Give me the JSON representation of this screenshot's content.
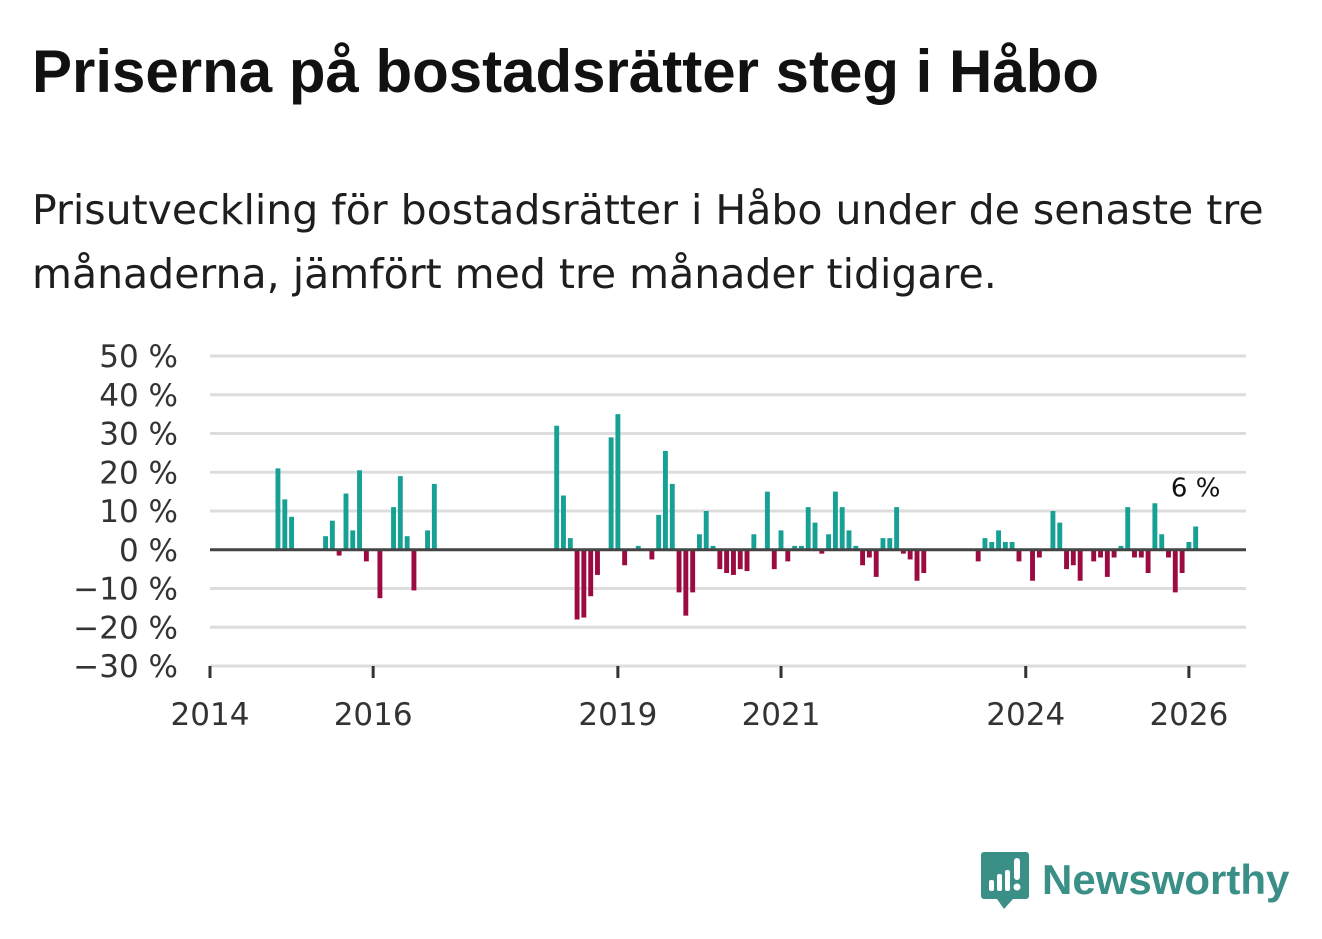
{
  "title": "Priserna på bostadsrätter steg i Håbo",
  "subtitle": "Prisutveckling för bostadsrätter i Håbo under de senaste tre månaderna, jämfört med tre månader tidigare.",
  "brand": {
    "name": "Newsworthy",
    "color": "#3a8f87"
  },
  "colors": {
    "positive": "#17a094",
    "negative": "#9b0a40",
    "grid": "#dddddd",
    "axis": "#444444"
  },
  "chart_data": {
    "type": "bar",
    "title": "Prisutveckling för bostadsrätter i Håbo",
    "xlabel": "",
    "ylabel": "",
    "ylim": [
      -30,
      50
    ],
    "xlim": [
      2014.0,
      2026.7
    ],
    "y_ticks": [
      50,
      40,
      30,
      20,
      10,
      0,
      -10,
      -20,
      -30
    ],
    "y_tick_labels": [
      "50 %",
      "40 %",
      "30 %",
      "20 %",
      "10 %",
      "0 %",
      "−10 %",
      "−20 %",
      "−30 %"
    ],
    "x_ticks": [
      2014,
      2016,
      2019,
      2021,
      2024,
      2026
    ],
    "x_tick_labels": [
      "2014",
      "2016",
      "2019",
      "2021",
      "2024",
      "2026"
    ],
    "annotation": {
      "x": 2026.083,
      "label": "6 %"
    },
    "x": [
      2014.833,
      2014.917,
      2015.0,
      2015.417,
      2015.5,
      2015.583,
      2015.667,
      2015.75,
      2015.833,
      2015.917,
      2016.083,
      2016.25,
      2016.333,
      2016.417,
      2016.5,
      2016.667,
      2016.75,
      2018.25,
      2018.333,
      2018.417,
      2018.5,
      2018.583,
      2018.667,
      2018.75,
      2018.917,
      2019.0,
      2019.083,
      2019.25,
      2019.417,
      2019.5,
      2019.583,
      2019.667,
      2019.75,
      2019.833,
      2019.917,
      2020.0,
      2020.083,
      2020.167,
      2020.25,
      2020.333,
      2020.417,
      2020.5,
      2020.583,
      2020.667,
      2020.833,
      2020.917,
      2021.0,
      2021.083,
      2021.167,
      2021.25,
      2021.333,
      2021.417,
      2021.5,
      2021.583,
      2021.667,
      2021.75,
      2021.833,
      2021.917,
      2022.0,
      2022.083,
      2022.167,
      2022.25,
      2022.333,
      2022.417,
      2022.5,
      2022.583,
      2022.667,
      2022.75,
      2023.417,
      2023.5,
      2023.583,
      2023.667,
      2023.75,
      2023.833,
      2023.917,
      2024.083,
      2024.167,
      2024.333,
      2024.417,
      2024.5,
      2024.583,
      2024.667,
      2024.833,
      2024.917,
      2025.0,
      2025.083,
      2025.167,
      2025.25,
      2025.333,
      2025.417,
      2025.5,
      2025.583,
      2025.667,
      2025.75,
      2025.833,
      2025.917,
      2026.0,
      2026.083
    ],
    "values": [
      21,
      13,
      8.5,
      3.5,
      7.5,
      -1.5,
      14.5,
      5,
      20.5,
      -3,
      -12.5,
      11,
      19,
      3.5,
      -10.5,
      5,
      17,
      32,
      14,
      3,
      -18,
      -17.5,
      -12,
      -6.5,
      29,
      35,
      -4,
      1,
      -2.5,
      9,
      25.5,
      17,
      -11,
      -17,
      -11,
      4,
      10,
      1,
      -5,
      -6,
      -6.5,
      -5,
      -5.5,
      4,
      15,
      -5,
      5,
      -3,
      1,
      1,
      11,
      7,
      -1,
      4,
      15,
      11,
      5,
      1,
      -4,
      -2,
      -7,
      3,
      3,
      11,
      -1,
      -2.5,
      -8,
      -6,
      -3,
      3,
      2,
      5,
      2,
      2,
      -3,
      -8,
      -2,
      10,
      7,
      -5,
      -4,
      -8,
      -3,
      -2,
      -7,
      -2,
      1,
      11,
      -2,
      -2,
      -6,
      12,
      4,
      -2,
      -11,
      -6,
      2,
      6
    ]
  }
}
